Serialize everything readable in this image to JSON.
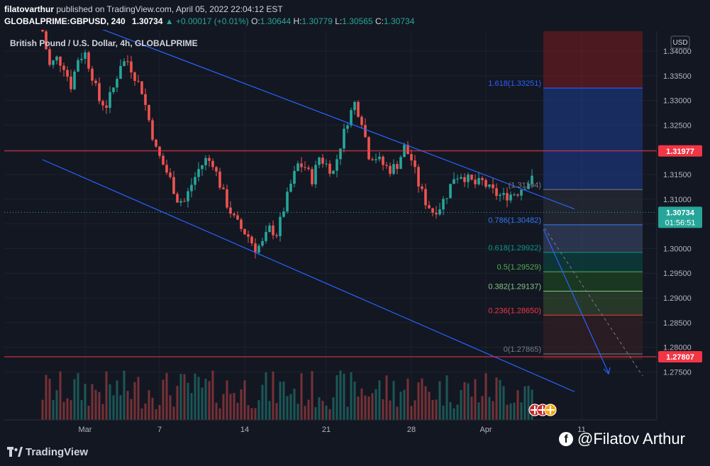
{
  "header": {
    "publisher": "filatovarthur",
    "published_text": "published on TradingView.com, April 05, 2022 22:04:12 EST",
    "symbol": "GLOBALPRIME:GBPUSD, 240",
    "price": "1.30734",
    "change": "▲ +0.00017 (+0.01%)",
    "o_label": "O:",
    "o": "1.30644",
    "h_label": "H:",
    "h": "1.30779",
    "l_label": "L:",
    "l": "1.30565",
    "c_label": "C:",
    "c": "1.30734"
  },
  "footer": {
    "brand": "TradingView",
    "credit": "@Filatov Arthur",
    "fb_icon": "facebook-icon"
  },
  "chart_data": {
    "type": "candlestick",
    "title": "British Pound / U.S. Dollar, 4h, GLOBALPRIME",
    "currency": "USD",
    "ylim": [
      1.2705,
      1.3465
    ],
    "y_ticks": [
      1.275,
      1.28,
      1.285,
      1.29,
      1.295,
      1.3,
      1.305,
      1.31,
      1.315,
      1.32,
      1.325,
      1.33,
      1.335,
      1.34
    ],
    "y_tick_labels": [
      "1.27500",
      "1.28000",
      "1.28500",
      "1.29000",
      "1.29500",
      "1.30000",
      "1.30500",
      "1.31000",
      "1.31500",
      "1.32000",
      "1.32500",
      "1.33000",
      "1.33500",
      "1.34000"
    ],
    "x_ticks": [
      "Mar",
      "7",
      "14",
      "21",
      "28",
      "Apr",
      "11"
    ],
    "close_path": [
      [
        0,
        1.344
      ],
      [
        2,
        1.337
      ],
      [
        4,
        1.3385
      ],
      [
        6,
        1.337
      ],
      [
        8,
        1.333
      ],
      [
        10,
        1.3385
      ],
      [
        12,
        1.3395
      ],
      [
        14,
        1.335
      ],
      [
        16,
        1.33
      ],
      [
        18,
        1.329
      ],
      [
        20,
        1.3325
      ],
      [
        22,
        1.3375
      ],
      [
        24,
        1.338
      ],
      [
        26,
        1.335
      ],
      [
        28,
        1.332
      ],
      [
        30,
        1.326
      ],
      [
        32,
        1.32
      ],
      [
        34,
        1.317
      ],
      [
        36,
        1.314
      ],
      [
        38,
        1.31
      ],
      [
        40,
        1.3095
      ],
      [
        42,
        1.313
      ],
      [
        44,
        1.316
      ],
      [
        46,
        1.318
      ],
      [
        48,
        1.3175
      ],
      [
        50,
        1.313
      ],
      [
        52,
        1.309
      ],
      [
        54,
        1.306
      ],
      [
        56,
        1.304
      ],
      [
        58,
        1.3025
      ],
      [
        60,
        1.3
      ],
      [
        62,
        1.301
      ],
      [
        64,
        1.304
      ],
      [
        66,
        1.303
      ],
      [
        68,
        1.308
      ],
      [
        70,
        1.313
      ],
      [
        72,
        1.317
      ],
      [
        74,
        1.3165
      ],
      [
        76,
        1.314
      ],
      [
        78,
        1.3185
      ],
      [
        80,
        1.317
      ],
      [
        82,
        1.3155
      ],
      [
        84,
        1.321
      ],
      [
        86,
        1.326
      ],
      [
        88,
        1.3295
      ],
      [
        90,
        1.326
      ],
      [
        92,
        1.319
      ],
      [
        94,
        1.3185
      ],
      [
        96,
        1.317
      ],
      [
        98,
        1.316
      ],
      [
        100,
        1.317
      ],
      [
        102,
        1.3205
      ],
      [
        104,
        1.318
      ],
      [
        106,
        1.313
      ],
      [
        108,
        1.3095
      ],
      [
        110,
        1.3075
      ],
      [
        112,
        1.3085
      ],
      [
        114,
        1.311
      ],
      [
        116,
        1.3145
      ],
      [
        118,
        1.315
      ],
      [
        120,
        1.314
      ],
      [
        122,
        1.313
      ],
      [
        124,
        1.3135
      ],
      [
        126,
        1.312
      ],
      [
        128,
        1.311
      ],
      [
        130,
        1.3105
      ],
      [
        132,
        1.311
      ],
      [
        134,
        1.3115
      ],
      [
        136,
        1.313
      ],
      [
        138,
        1.314
      ],
      [
        140,
        1.3085
      ],
      [
        142,
        1.307
      ]
    ],
    "horizontal_levels": [
      {
        "value": 1.31977,
        "label": "1.31977",
        "color": "#f23645"
      },
      {
        "value": 1.27807,
        "label": "1.27807",
        "color": "#f23645"
      }
    ],
    "last_price": {
      "value": 1.30734,
      "label": "1.30734",
      "countdown": "01:56:51"
    },
    "fibonacci": [
      {
        "label": "1.618(1.33251)",
        "value": 1.33251,
        "color": "#2962ff"
      },
      {
        "label": "(1.31194)",
        "value": 1.31194,
        "color": "#787b86"
      },
      {
        "label": "0.786(1.30482)",
        "value": 1.30482,
        "color": "#3179f5"
      },
      {
        "label": "0.618(1.29922)",
        "value": 1.29922,
        "color": "#089981"
      },
      {
        "label": "0.5(1.29529)",
        "value": 1.29529,
        "color": "#4caf50"
      },
      {
        "label": "0.382(1.29137)",
        "value": 1.29137,
        "color": "#81c784"
      },
      {
        "label": "0.236(1.28650)",
        "value": 1.2865,
        "color": "#f23645"
      },
      {
        "label": "0(1.27865)",
        "value": 1.27865,
        "color": "#787b86"
      }
    ],
    "channel_lines": [
      {
        "from": [
          0,
          1.349
        ],
        "to": [
          150,
          1.308
        ]
      },
      {
        "from": [
          0,
          1.318
        ],
        "to": [
          150,
          1.271
        ]
      }
    ],
    "colors": {
      "up": "#26a69a",
      "down": "#ef5350",
      "background": "#131722",
      "grid": "#1e222d",
      "channel": "#2962ff"
    }
  }
}
